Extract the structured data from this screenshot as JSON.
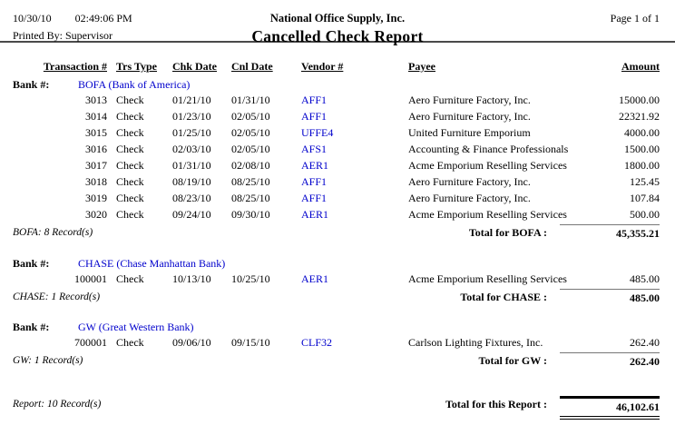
{
  "meta": {
    "date": "10/30/10",
    "time": "02:49:06 PM",
    "printed_by": "Printed By: Supervisor",
    "company": "National Office Supply, Inc.",
    "report_title": "Cancelled Check Report",
    "page": "Page 1 of 1"
  },
  "colors": {
    "link_blue": "#0000CC"
  },
  "columns": {
    "transaction": "Transaction #",
    "trs_type": "Trs Type",
    "chk_date": "Chk Date",
    "cnl_date": "Cnl Date",
    "vendor": "Vendor #",
    "payee": "Payee",
    "amount": "Amount"
  },
  "bank_label": "Bank #:",
  "sections": [
    {
      "bank": "BOFA (Bank of America)",
      "rows": [
        {
          "txn": "3013",
          "type": "Check",
          "chk": "01/21/10",
          "cnl": "01/31/10",
          "vendor": "AFF1",
          "payee": "Aero Furniture Factory, Inc.",
          "amount": "15000.00"
        },
        {
          "txn": "3014",
          "type": "Check",
          "chk": "01/23/10",
          "cnl": "02/05/10",
          "vendor": "AFF1",
          "payee": "Aero Furniture Factory, Inc.",
          "amount": "22321.92"
        },
        {
          "txn": "3015",
          "type": "Check",
          "chk": "01/25/10",
          "cnl": "02/05/10",
          "vendor": "UFFE4",
          "payee": "United Furniture Emporium",
          "amount": "4000.00"
        },
        {
          "txn": "3016",
          "type": "Check",
          "chk": "02/03/10",
          "cnl": "02/05/10",
          "vendor": "AFS1",
          "payee": "Accounting & Finance Professionals",
          "amount": "1500.00"
        },
        {
          "txn": "3017",
          "type": "Check",
          "chk": "01/31/10",
          "cnl": "02/08/10",
          "vendor": "AER1",
          "payee": "Acme Emporium Reselling Services",
          "amount": "1800.00"
        },
        {
          "txn": "3018",
          "type": "Check",
          "chk": "08/19/10",
          "cnl": "08/25/10",
          "vendor": "AFF1",
          "payee": "Aero Furniture Factory, Inc.",
          "amount": "125.45"
        },
        {
          "txn": "3019",
          "type": "Check",
          "chk": "08/23/10",
          "cnl": "08/25/10",
          "vendor": "AFF1",
          "payee": "Aero Furniture Factory, Inc.",
          "amount": "107.84"
        },
        {
          "txn": "3020",
          "type": "Check",
          "chk": "09/24/10",
          "cnl": "09/30/10",
          "vendor": "AER1",
          "payee": "Acme Emporium Reselling Services",
          "amount": "500.00"
        }
      ],
      "record_note": "BOFA: 8 Record(s)",
      "total_label": "Total for BOFA :",
      "total": "45,355.21"
    },
    {
      "bank": "CHASE (Chase Manhattan Bank)",
      "rows": [
        {
          "txn": "100001",
          "type": "Check",
          "chk": "10/13/10",
          "cnl": "10/25/10",
          "vendor": "AER1",
          "payee": "Acme Emporium Reselling Services",
          "amount": "485.00"
        }
      ],
      "record_note": "CHASE: 1 Record(s)",
      "total_label": "Total for CHASE :",
      "total": "485.00"
    },
    {
      "bank": "GW (Great Western Bank)",
      "rows": [
        {
          "txn": "700001",
          "type": "Check",
          "chk": "09/06/10",
          "cnl": "09/15/10",
          "vendor": "CLF32",
          "payee": "Carlson Lighting Fixtures, Inc.",
          "amount": "262.40"
        }
      ],
      "record_note": "GW: 1 Record(s)",
      "total_label": "Total for GW :",
      "total": "262.40"
    }
  ],
  "report_total": {
    "record_note": "Report: 10 Record(s)",
    "label": "Total for this Report :",
    "amount": "46,102.61"
  }
}
